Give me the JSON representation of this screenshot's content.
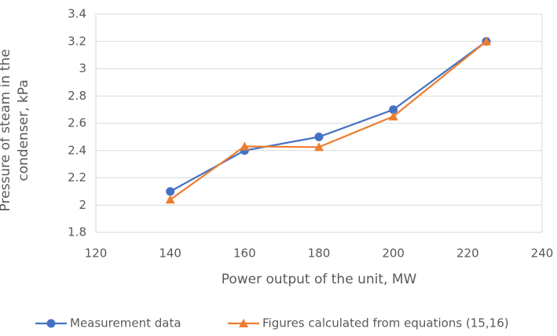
{
  "chart_data": {
    "type": "line",
    "x_label": "Power output of the unit, MW",
    "y_label": "Pressure of steam in the condenser, kPa",
    "x": [
      140,
      160,
      180,
      200,
      225
    ],
    "series": [
      {
        "name": "Measurement data",
        "color": "#4472c4",
        "marker": "circle",
        "values": [
          2.1,
          2.4,
          2.5,
          2.7,
          3.2
        ]
      },
      {
        "name": "Figures calculated from equations (15,16)",
        "color": "#ed7d31",
        "marker": "triangle",
        "values": [
          2.04,
          2.43,
          2.425,
          2.65,
          3.2
        ]
      }
    ],
    "xlim": [
      120,
      240
    ],
    "xticks": [
      120,
      140,
      160,
      180,
      200,
      220,
      240
    ],
    "ylim": [
      1.8,
      3.4
    ],
    "yticks": [
      1.8,
      2,
      2.2,
      2.4,
      2.6,
      2.8,
      3,
      3.2,
      3.4
    ],
    "grid": true,
    "legend": "bottom"
  }
}
